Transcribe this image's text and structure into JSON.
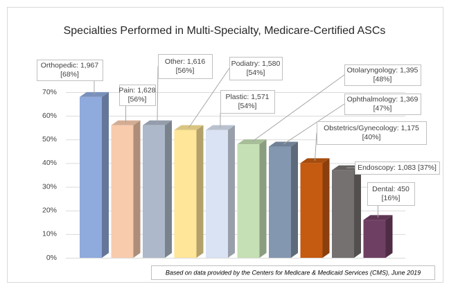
{
  "chart_data": {
    "type": "bar3d",
    "title": "Specialties Performed in Multi-Specialty, Medicare-Certified  ASCs",
    "values": [
      68,
      56,
      56,
      54,
      54,
      48,
      47,
      40,
      37,
      16
    ],
    "value_labels": [
      [
        "Orthopedic: 1,967",
        "[68%]"
      ],
      [
        "Pain: 1,628",
        "[56%]"
      ],
      [
        "Other: 1,616",
        "[56%]"
      ],
      [
        "Podiatry: 1,580",
        "[54%]"
      ],
      [
        "Plastic: 1,571",
        "[54%]"
      ],
      [
        "Otolaryngology: 1,395",
        "[48%]"
      ],
      [
        "Ophthalmology: 1,369",
        "[47%]"
      ],
      [
        "Obstetrics/Gynecology: 1,175",
        "[40%]"
      ],
      [
        "Endoscopy: 1,083 [37%]"
      ],
      [
        "Dental: 450",
        "[16%]"
      ]
    ],
    "colors": [
      "#8faadc",
      "#f8cbad",
      "#adb9ca",
      "#ffe699",
      "#dae3f3",
      "#c5e0b4",
      "#8497b0",
      "#c55a11",
      "#767171",
      "#6f3f63"
    ],
    "ylim": [
      0,
      70
    ],
    "yticks": [
      {
        "value": 0,
        "label": "0%"
      },
      {
        "value": 10,
        "label": "10%"
      },
      {
        "value": 20,
        "label": "20%"
      },
      {
        "value": 30,
        "label": "30%"
      },
      {
        "value": 40,
        "label": "40%"
      },
      {
        "value": 50,
        "label": "50%"
      },
      {
        "value": 60,
        "label": "60%"
      },
      {
        "value": 70,
        "label": "70%"
      }
    ],
    "grid": true,
    "footnote": "Based on data provided by the Centers for Medicare & Medicaid Services (CMS), June 2019"
  }
}
